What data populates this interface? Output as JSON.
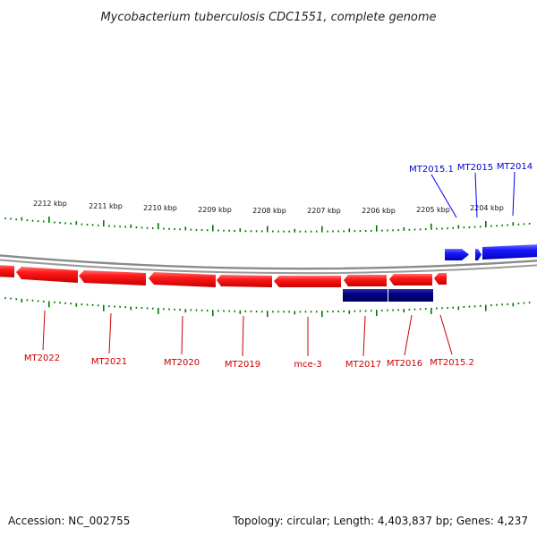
{
  "title": "Mycobacterium tuberculosis CDC1551, complete genome",
  "footer": {
    "accession": "Accession: NC_002755",
    "summary": "Topology: circular; Length: 4,403,837 bp; Genes: 4,237"
  },
  "colors": {
    "forward_gene": "#0000ee",
    "reverse_gene": "#ee0000",
    "reverse_other": "#000080",
    "tick": "#007700",
    "backbone": "#8a8a8a"
  },
  "ruler": {
    "unit": "kbp",
    "labels": [
      "2212 kbp",
      "2211 kbp",
      "2210 kbp",
      "2209 kbp",
      "2208 kbp",
      "2207 kbp",
      "2206 kbp",
      "2205 kbp",
      "2204 kbp"
    ]
  },
  "genes": {
    "forward": [
      {
        "name": "MT2015.1"
      },
      {
        "name": "MT2015"
      },
      {
        "name": "MT2014"
      }
    ],
    "reverse": [
      {
        "name": "MT2022"
      },
      {
        "name": "MT2021"
      },
      {
        "name": "MT2020"
      },
      {
        "name": "MT2019"
      },
      {
        "name": "mce-3"
      },
      {
        "name": "MT2017"
      },
      {
        "name": "MT2016"
      },
      {
        "name": "MT2015.2"
      }
    ]
  }
}
